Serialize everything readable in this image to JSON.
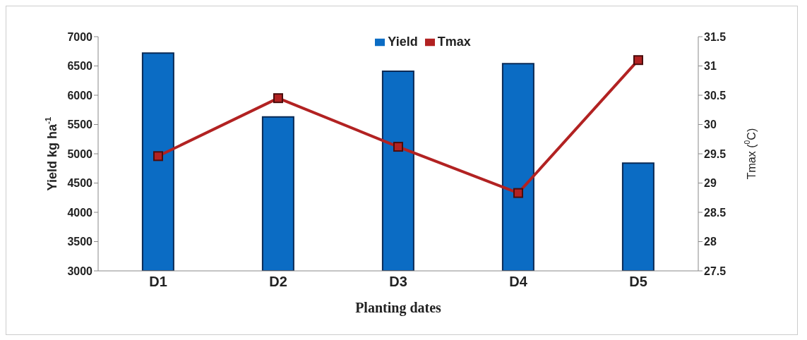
{
  "chart_data": {
    "type": "bar",
    "xlabel": "Planting dates",
    "ylabel": "Yield kg ha$^{-1}$",
    "y2label": "Tmax ($^{0}$C)",
    "categories": [
      "D1",
      "D2",
      "D3",
      "D4",
      "D5"
    ],
    "series": [
      {
        "name": "Yield",
        "color": "#0b6cc4",
        "values": [
          6720,
          5630,
          6410,
          6540,
          4840
        ]
      },
      {
        "name": "Tmax",
        "type": "line",
        "axis": "y2",
        "color": "#b22222",
        "values": [
          29.46,
          30.45,
          29.62,
          28.83,
          31.1
        ]
      }
    ],
    "ylim": [
      3000,
      7000
    ],
    "yticks": [
      3000,
      3500,
      4000,
      4500,
      5000,
      5500,
      6000,
      6500,
      7000
    ],
    "y2lim": [
      27.5,
      31.5
    ],
    "y2ticks": [
      27.5,
      28,
      28.5,
      29,
      29.5,
      30,
      30.5,
      31,
      31.5
    ],
    "grid": false,
    "legend": "top",
    "marker": "square",
    "line_style": "solid"
  }
}
